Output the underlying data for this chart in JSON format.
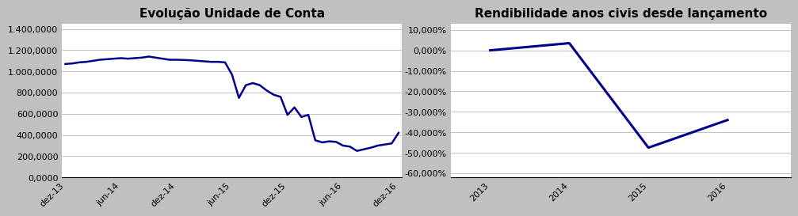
{
  "chart1": {
    "title": "Evolução Unidade de Conta",
    "x_labels": [
      "dez-13",
      "jun-14",
      "dez-14",
      "jun-15",
      "dez-15",
      "jun-16",
      "dez-16"
    ],
    "yticks": [
      0.0,
      200.0,
      400.0,
      600.0,
      800.0,
      1000.0,
      1200.0,
      1400.0
    ],
    "ylim": [
      0,
      1450
    ],
    "line_color": "#00008B",
    "line_width": 1.8,
    "x_values": [
      0,
      1,
      2,
      3,
      4,
      5,
      6,
      7,
      8,
      9,
      10,
      11,
      12,
      13,
      14,
      15,
      16,
      17,
      18,
      19,
      20,
      21,
      22,
      23,
      24,
      25,
      26,
      27,
      28,
      29,
      30,
      31,
      32,
      33,
      34,
      35,
      36,
      37,
      38,
      39,
      40,
      41,
      42,
      43,
      44,
      45,
      46,
      47,
      48
    ],
    "y_values": [
      1070,
      1075,
      1085,
      1090,
      1100,
      1110,
      1115,
      1120,
      1125,
      1120,
      1125,
      1130,
      1140,
      1130,
      1120,
      1110,
      1110,
      1108,
      1105,
      1100,
      1095,
      1090,
      1090,
      1085,
      970,
      750,
      870,
      890,
      870,
      820,
      780,
      760,
      590,
      660,
      570,
      590,
      350,
      330,
      340,
      335,
      300,
      290,
      250,
      265,
      280,
      300,
      310,
      320,
      420
    ]
  },
  "chart2": {
    "title": "Rendibilidade anos civis desde lançamento",
    "x_values": [
      2013,
      2014,
      2015,
      2016
    ],
    "y_values": [
      0.0,
      3.5,
      -47.5,
      -34.0
    ],
    "yticks": [
      10.0,
      0.0,
      -10.0,
      -20.0,
      -30.0,
      -40.0,
      -50.0,
      -60.0
    ],
    "ylim": [
      -62,
      13
    ],
    "line_color": "#00008B",
    "line_width": 2.2,
    "xlim": [
      2012.5,
      2016.8
    ]
  },
  "bg_color": "#C0C0C0",
  "plot_bg": "#FFFFFF",
  "title_fontsize": 11,
  "tick_fontsize": 8
}
